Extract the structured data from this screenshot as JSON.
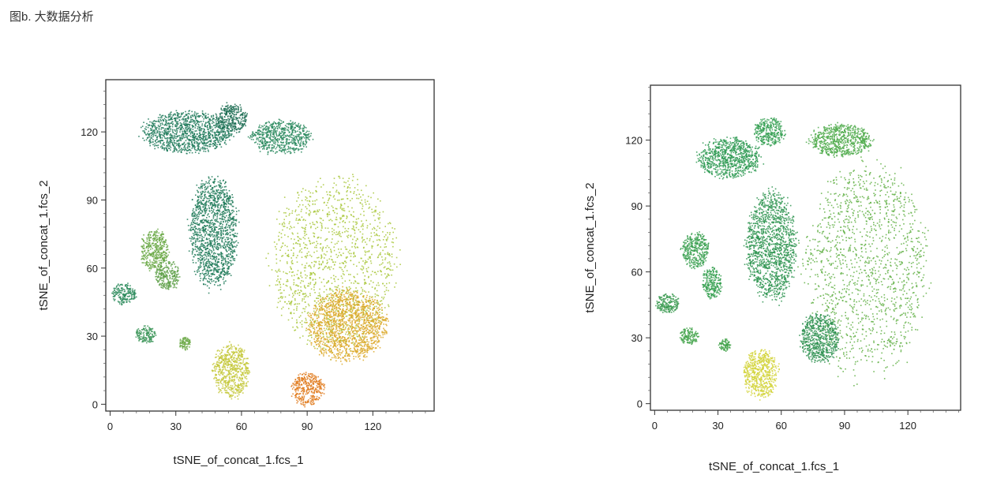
{
  "figure_title": "图b. 大数据分析",
  "chart_data": [
    {
      "type": "scatter",
      "xlabel": "tSNE_of_concat_1.fcs_1",
      "ylabel": "tSNE_of_concat_1.fcs_2",
      "xticks": [
        0,
        30,
        60,
        90,
        120
      ],
      "yticks": [
        0,
        30,
        60,
        90,
        120
      ],
      "xlim": [
        -2,
        148
      ],
      "ylim": [
        -3,
        143
      ],
      "grid": false,
      "coloring": "heat: green to yellow to orange-red",
      "clusters": [
        {
          "cx": 35,
          "cy": 120,
          "rx": 22,
          "ry": 10,
          "color": "#1f7a5a"
        },
        {
          "cx": 55,
          "cy": 126,
          "rx": 8,
          "ry": 7,
          "color": "#1e6f55"
        },
        {
          "cx": 78,
          "cy": 118,
          "rx": 15,
          "ry": 8,
          "color": "#2a8a5e"
        },
        {
          "cx": 47,
          "cy": 76,
          "rx": 12,
          "ry": 26,
          "color": "#1e7a58"
        },
        {
          "cx": 102,
          "cy": 62,
          "rx": 31,
          "ry": 42,
          "color": "#a8c73a"
        },
        {
          "cx": 108,
          "cy": 35,
          "rx": 20,
          "ry": 17,
          "color": "#dca828"
        },
        {
          "cx": 90,
          "cy": 7,
          "rx": 8,
          "ry": 8,
          "color": "#e07a1c"
        },
        {
          "cx": 55,
          "cy": 15,
          "rx": 9,
          "ry": 13,
          "color": "#c4c83a"
        },
        {
          "cx": 20,
          "cy": 68,
          "rx": 7,
          "ry": 10,
          "color": "#6aa845"
        },
        {
          "cx": 26,
          "cy": 57,
          "rx": 6,
          "ry": 7,
          "color": "#5ea048"
        },
        {
          "cx": 6,
          "cy": 49,
          "rx": 6,
          "ry": 5,
          "color": "#2a8a5a"
        },
        {
          "cx": 16,
          "cy": 31,
          "rx": 5,
          "ry": 4,
          "color": "#3a9457"
        },
        {
          "cx": 34,
          "cy": 27,
          "rx": 3,
          "ry": 3,
          "color": "#6aa845"
        }
      ]
    },
    {
      "type": "scatter",
      "xlabel": "tSNE_of_concat_1.fcs_1",
      "ylabel": "tSNE_of_concat_1.fcs_2",
      "xticks": [
        0,
        30,
        60,
        90,
        120
      ],
      "yticks": [
        0,
        30,
        60,
        90,
        120
      ],
      "xlim": [
        -2,
        145
      ],
      "ylim": [
        -3,
        145
      ],
      "grid": false,
      "coloring": "heat: green with one yellow cluster",
      "clusters": [
        {
          "cx": 35,
          "cy": 112,
          "rx": 16,
          "ry": 10,
          "color": "#2e9a52"
        },
        {
          "cx": 54,
          "cy": 124,
          "rx": 8,
          "ry": 7,
          "color": "#35a052"
        },
        {
          "cx": 88,
          "cy": 120,
          "rx": 16,
          "ry": 8,
          "color": "#4daa4a"
        },
        {
          "cx": 55,
          "cy": 72,
          "rx": 13,
          "ry": 27,
          "color": "#2e9450"
        },
        {
          "cx": 100,
          "cy": 62,
          "rx": 32,
          "ry": 52,
          "color": "#62b045"
        },
        {
          "cx": 78,
          "cy": 30,
          "rx": 10,
          "ry": 12,
          "color": "#2e9050"
        },
        {
          "cx": 50,
          "cy": 14,
          "rx": 9,
          "ry": 12,
          "color": "#d2d43a"
        },
        {
          "cx": 19,
          "cy": 70,
          "rx": 7,
          "ry": 9,
          "color": "#3aa050"
        },
        {
          "cx": 27,
          "cy": 55,
          "rx": 5,
          "ry": 8,
          "color": "#35a050"
        },
        {
          "cx": 6,
          "cy": 46,
          "rx": 6,
          "ry": 5,
          "color": "#3a9a50"
        },
        {
          "cx": 16,
          "cy": 31,
          "rx": 5,
          "ry": 4,
          "color": "#45a44c"
        },
        {
          "cx": 33,
          "cy": 27,
          "rx": 3,
          "ry": 3,
          "color": "#45a44c"
        }
      ]
    }
  ]
}
